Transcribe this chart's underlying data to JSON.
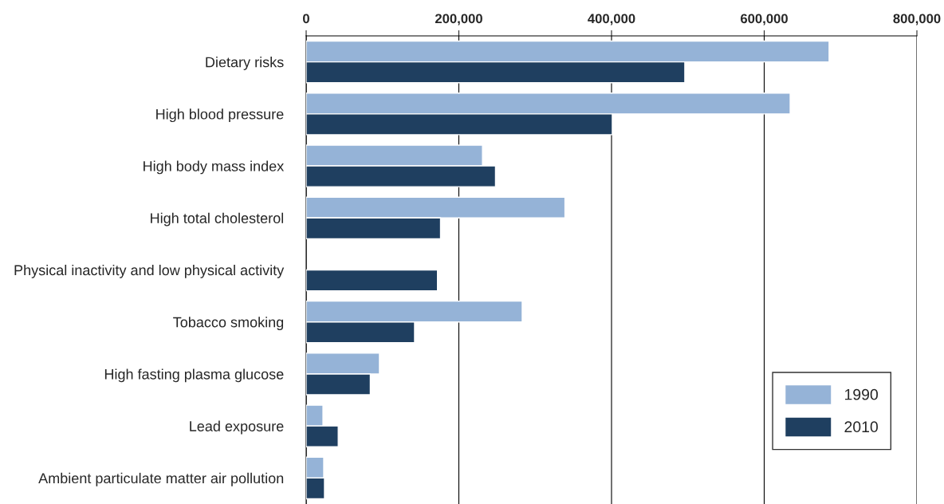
{
  "chart_data": {
    "type": "bar",
    "orientation": "horizontal",
    "categories": [
      "Dietary risks",
      "High blood pressure",
      "High body mass index",
      "High total cholesterol",
      "Physical inactivity and low physical activity",
      "Tobacco smoking",
      "High fasting plasma glucose",
      "Lead exposure",
      "Ambient particulate matter air pollution"
    ],
    "series": [
      {
        "name": "1990",
        "color": "#95b3d7",
        "values": [
          685000,
          634000,
          231000,
          339000,
          null,
          283000,
          96000,
          22000,
          23000
        ]
      },
      {
        "name": "2010",
        "color": "#1f3f60",
        "values": [
          496000,
          401000,
          248000,
          176000,
          172000,
          142000,
          84000,
          42000,
          24000
        ]
      }
    ],
    "xlim": [
      0,
      800000
    ],
    "xticks": [
      {
        "value": 0,
        "label": "0"
      },
      {
        "value": 200000,
        "label": "200,000"
      },
      {
        "value": 400000,
        "label": "400,000"
      },
      {
        "value": 600000,
        "label": "600,000"
      },
      {
        "value": 800000,
        "label": "800,000"
      }
    ],
    "grid": "x",
    "legend": "lower right"
  }
}
